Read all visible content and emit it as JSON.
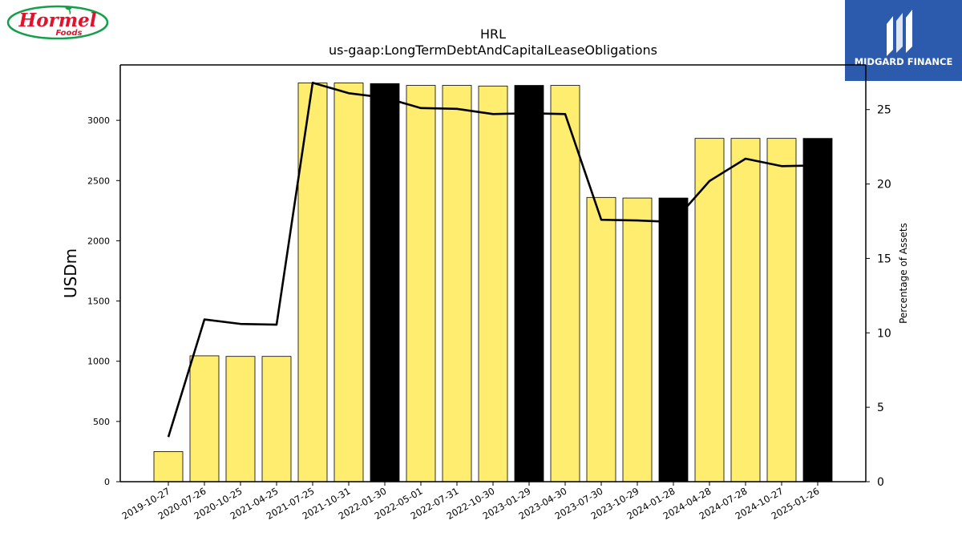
{
  "logos": {
    "left_brand": "Hormel",
    "left_brand_sub": "Foods",
    "right_brand": "MIDGARD FINANCE"
  },
  "colors": {
    "bar_fill": "#FFED6F",
    "bar_highlight": "#000000",
    "line": "#000000",
    "hormel_red": "#E3112B",
    "hormel_green": "#14A04B",
    "midgard_blue": "#2C5BAE"
  },
  "chart_data": {
    "type": "bar",
    "title": "HRL",
    "subtitle": "us-gaap:LongTermDebtAndCapitalLeaseObligations",
    "ylabel": "USDm",
    "ylabel_right": "Percentage of Assets",
    "categories": [
      "2019-10-27",
      "2020-07-26",
      "2020-10-25",
      "2021-04-25",
      "2021-07-25",
      "2021-10-31",
      "2022-01-30",
      "2022-05-01",
      "2022-07-31",
      "2022-10-30",
      "2023-01-29",
      "2023-04-30",
      "2023-07-30",
      "2023-10-29",
      "2024-01-28",
      "2024-04-28",
      "2024-07-28",
      "2024-10-27",
      "2025-01-26"
    ],
    "highlighted": [
      false,
      false,
      false,
      false,
      false,
      false,
      true,
      false,
      false,
      false,
      true,
      false,
      false,
      false,
      true,
      false,
      false,
      false,
      true
    ],
    "series": [
      {
        "type": "bar",
        "axis": "left",
        "values": [
          250,
          1045,
          1040,
          1040,
          3310,
          3310,
          3305,
          3290,
          3290,
          3285,
          3290,
          3290,
          2360,
          2355,
          2355,
          2850,
          2850,
          2850,
          2850
        ]
      },
      {
        "type": "line",
        "axis": "right",
        "values": [
          3.0,
          10.9,
          10.6,
          10.55,
          26.8,
          26.1,
          25.8,
          25.1,
          25.05,
          24.7,
          24.75,
          24.7,
          17.6,
          17.55,
          17.45,
          20.2,
          21.7,
          21.2,
          21.25
        ]
      }
    ],
    "ylim": [
      0,
      3460
    ],
    "ylim_right": [
      0,
      28.0
    ],
    "yticks": [
      0,
      500,
      1000,
      1500,
      2000,
      2500,
      3000
    ],
    "yticks_right": [
      0,
      5,
      10,
      15,
      20,
      25
    ],
    "grid": false,
    "legend": "none"
  }
}
